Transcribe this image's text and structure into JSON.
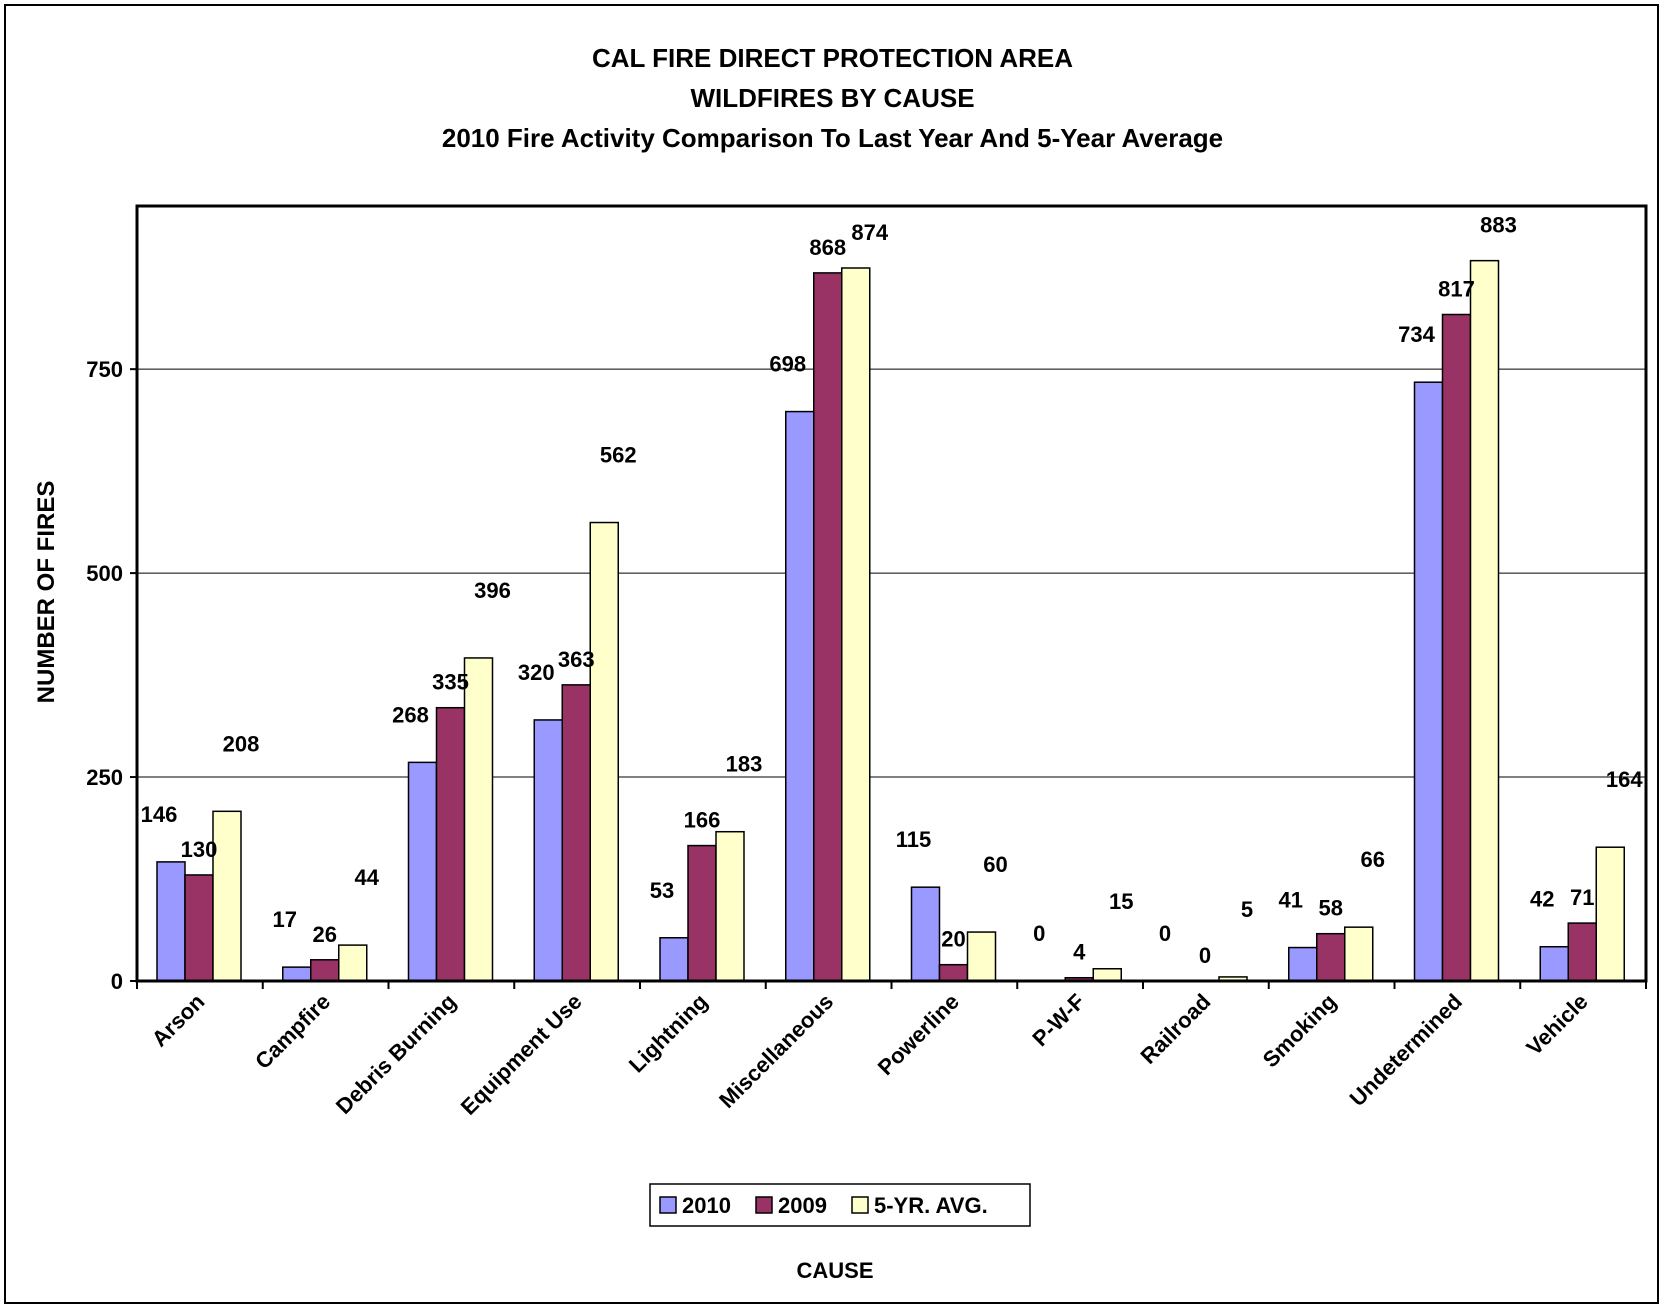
{
  "chart_data": {
    "type": "bar",
    "title": "CAL FIRE DIRECT PROTECTION AREA",
    "subtitle": "WILDFIRES BY CAUSE",
    "subtitle2": "2010 Fire Activity Comparison To Last Year And 5-Year Average",
    "xlabel": "CAUSE",
    "ylabel": "NUMBER OF FIRES",
    "ylim": [
      0,
      950
    ],
    "yticks": [
      0,
      250,
      500,
      750
    ],
    "grid": true,
    "legend_position": "bottom",
    "categories": [
      "Arson",
      "Campfire",
      "Debris Burning",
      "Equipment Use",
      "Lightning",
      "Miscellaneous",
      "Powerline",
      "P-W-F",
      "Railroad",
      "Smoking",
      "Undetermined",
      "Vehicle"
    ],
    "series": [
      {
        "name": "2010",
        "color": "#9999ff",
        "values": [
          146,
          17,
          268,
          320,
          53,
          698,
          115,
          0,
          0,
          41,
          734,
          42
        ]
      },
      {
        "name": "2009",
        "color": "#993366",
        "values": [
          130,
          26,
          335,
          363,
          166,
          868,
          20,
          4,
          0,
          58,
          817,
          71
        ]
      },
      {
        "name": "5-YR. AVG.",
        "color": "#ffffcc",
        "values": [
          208,
          44,
          396,
          562,
          183,
          874,
          60,
          15,
          5,
          66,
          883,
          164
        ]
      }
    ]
  }
}
